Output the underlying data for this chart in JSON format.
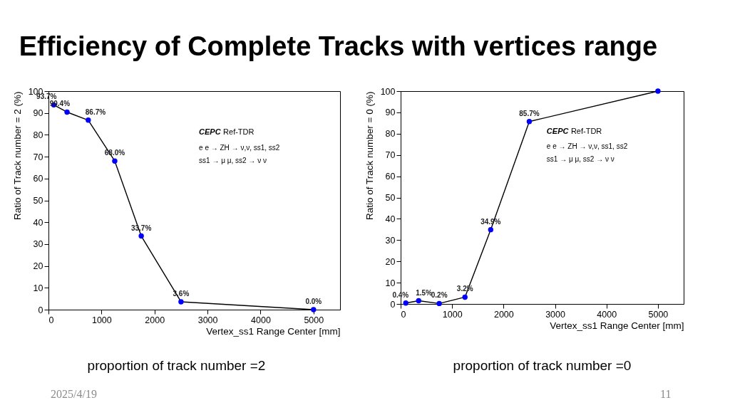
{
  "chart_data": [
    {
      "type": "line",
      "title": "Efficiency of Complete Tracks with vertices range",
      "xlabel": "Vertex_ss1 Range Center [mm]",
      "ylabel": "Ratio of Track number = 2 (%)",
      "x": [
        100,
        350,
        750,
        1250,
        1750,
        2500,
        5000
      ],
      "values": [
        93.7,
        90.4,
        86.7,
        68.0,
        33.7,
        3.6,
        0.0
      ],
      "value_labels": [
        "93.7%",
        "90.4%",
        "86.7%",
        "68.0%",
        "33.7%",
        "3.6%",
        "0.0%"
      ],
      "color": "#0000ff",
      "marker": "circle",
      "line_style": "solid",
      "xlim": [
        0,
        5500
      ],
      "xticks": [
        0,
        1000,
        2000,
        3000,
        4000,
        5000
      ],
      "ylim": [
        0,
        100
      ],
      "yticks": [
        0,
        10,
        20,
        30,
        40,
        50,
        60,
        70,
        80,
        90,
        100
      ],
      "annotations": [
        "CEPC Ref-TDR",
        "e e → ZH → ν,ν, ss1, ss2",
        "ss1 → μ μ, ss2 → ν ν",
        "proportion of track number =2",
        "2025/4/19"
      ]
    },
    {
      "type": "line",
      "xlabel": "Vertex_ss1 Range Center [mm]",
      "ylabel": "Ratio of Track number = 0 (%)",
      "x": [
        100,
        350,
        750,
        1250,
        1750,
        2500,
        5000
      ],
      "values": [
        0.4,
        1.5,
        0.2,
        3.2,
        34.9,
        85.7,
        100
      ],
      "value_labels": [
        "0.4%",
        "1.5%",
        "0.2%",
        "3.2%",
        "34.9%",
        "85.7%",
        null
      ],
      "color": "#0000ff",
      "marker": "circle",
      "line_style": "solid",
      "xlim": [
        0,
        5500
      ],
      "xticks": [
        0,
        1000,
        2000,
        3000,
        4000,
        5000
      ],
      "ylim": [
        0,
        100
      ],
      "yticks": [
        0,
        10,
        20,
        30,
        40,
        50,
        60,
        70,
        80,
        90,
        100
      ],
      "annotations": [
        "CEPC Ref-TDR",
        "e e → ZH → ν,ν, ss1, ss2",
        "ss1 → μ μ, ss2 → ν ν",
        "proportion of track number =0",
        "11"
      ]
    }
  ]
}
